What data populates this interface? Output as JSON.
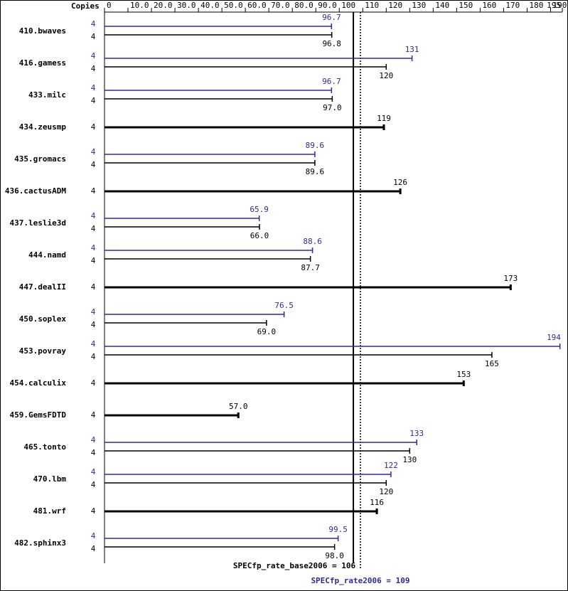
{
  "chart_data": {
    "type": "bar",
    "orientation": "horizontal",
    "copies_header": "Copies",
    "categories": [
      "410.bwaves",
      "416.gamess",
      "433.milc",
      "434.zeusmp",
      "435.gromacs",
      "436.cactusADM",
      "437.leslie3d",
      "444.namd",
      "447.dealII",
      "450.soplex",
      "453.povray",
      "454.calculix",
      "459.GemsFDTD",
      "465.tonto",
      "470.lbm",
      "481.wrf",
      "482.sphinx3"
    ],
    "series": [
      {
        "name": "SPECfp_rate2006",
        "color": "#2b2b9f",
        "copies": [
          4,
          4,
          4,
          null,
          4,
          null,
          4,
          4,
          null,
          4,
          4,
          null,
          null,
          4,
          4,
          null,
          4
        ],
        "values": [
          96.7,
          131,
          96.7,
          null,
          89.6,
          null,
          65.9,
          88.6,
          null,
          76.5,
          194,
          null,
          null,
          133,
          122,
          null,
          99.5
        ],
        "value_labels": [
          "96.7",
          "131",
          "96.7",
          null,
          "89.6",
          null,
          "65.9",
          "88.6",
          null,
          "76.5",
          "194",
          null,
          null,
          "133",
          "122",
          null,
          "99.5"
        ]
      },
      {
        "name": "SPECfp_rate_base2006",
        "color": "#000000",
        "copies": [
          4,
          4,
          4,
          4,
          4,
          4,
          4,
          4,
          4,
          4,
          4,
          4,
          4,
          4,
          4,
          4,
          4
        ],
        "values": [
          96.8,
          120,
          97.0,
          119,
          89.6,
          126,
          66.0,
          87.7,
          173,
          69.0,
          165,
          153,
          57.0,
          130,
          120,
          116,
          98.0
        ],
        "value_labels": [
          "96.8",
          "120",
          "97.0",
          "119",
          "89.6",
          "126",
          "66.0",
          "87.7",
          "173",
          "69.0",
          "165",
          "153",
          "57.0",
          "130",
          "120",
          "116",
          "98.0"
        ]
      }
    ],
    "reference_lines": [
      {
        "label": "SPECfp_rate_base2006 = 106",
        "value": 106,
        "color": "#000000",
        "dashed": false
      },
      {
        "label": "SPECfp_rate2006 = 109",
        "value": 109,
        "color": "#2b2b9f",
        "dashed": true
      }
    ],
    "xlim": [
      0,
      195
    ],
    "xticks": [
      0,
      {
        "value": 10,
        "label": "10.0"
      },
      {
        "value": 20,
        "label": "20.0"
      },
      {
        "value": 30,
        "label": "30.0"
      },
      {
        "value": 40,
        "label": "40.0"
      },
      {
        "value": 50,
        "label": "50.0"
      },
      {
        "value": 60,
        "label": "60.0"
      },
      {
        "value": 70,
        "label": "70.0"
      },
      {
        "value": 80,
        "label": "80.0"
      },
      {
        "value": 90,
        "label": "90.0"
      },
      100,
      110,
      120,
      130,
      140,
      150,
      160,
      170,
      180,
      190,
      195
    ]
  }
}
